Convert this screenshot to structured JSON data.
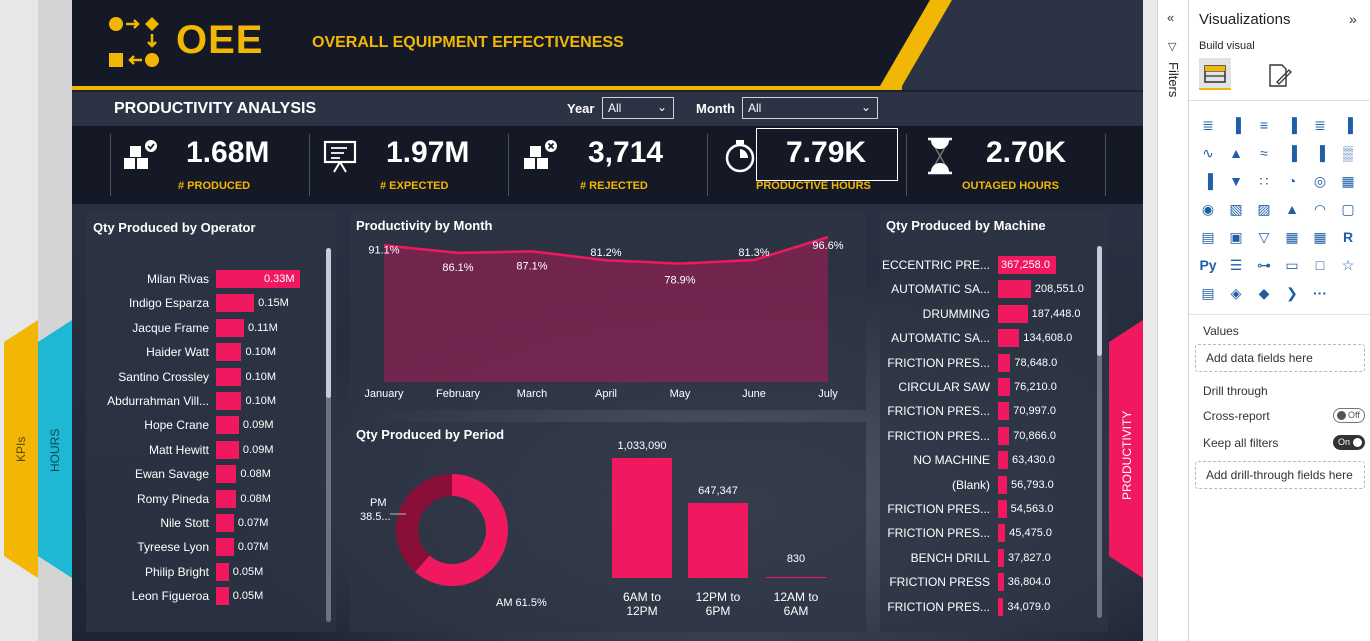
{
  "left_tabs": {
    "kpis": "KPIs",
    "hours": "HOURS"
  },
  "header": {
    "logo_text": "OEE",
    "subtitle": "OVERALL EQUIPMENT  EFFECTIVENESS"
  },
  "section_title": "PRODUCTIVITY ANALYSIS",
  "slicers": {
    "year": {
      "label": "Year",
      "value": "All"
    },
    "month": {
      "label": "Month",
      "value": "All"
    }
  },
  "kpis": [
    {
      "value": "1.68M",
      "caption": "# PRODUCED",
      "icon": "boxes-check-icon"
    },
    {
      "value": "1.97M",
      "caption": "# EXPECTED",
      "icon": "presentation-board-icon"
    },
    {
      "value": "3,714",
      "caption": "# REJECTED",
      "icon": "boxes-x-icon"
    },
    {
      "value": "7.79K",
      "caption": "PRODUCTIVE HOURS",
      "icon": "stopwatch-icon"
    },
    {
      "value": "2.70K",
      "caption": "OUTAGED HOURS",
      "icon": "hourglass-icon"
    }
  ],
  "operator_chart": {
    "title": "Qty Produced by Operator",
    "rows": [
      {
        "label": "Milan Rivas",
        "value": 0.33,
        "text": "0.33M"
      },
      {
        "label": "Indigo Esparza",
        "value": 0.15,
        "text": "0.15M"
      },
      {
        "label": "Jacque Frame",
        "value": 0.11,
        "text": "0.11M"
      },
      {
        "label": "Haider Watt",
        "value": 0.1,
        "text": "0.10M"
      },
      {
        "label": "Santino Crossley",
        "value": 0.1,
        "text": "0.10M"
      },
      {
        "label": "Abdurrahman Vill...",
        "value": 0.1,
        "text": "0.10M"
      },
      {
        "label": "Hope Crane",
        "value": 0.09,
        "text": "0.09M"
      },
      {
        "label": "Matt Hewitt",
        "value": 0.09,
        "text": "0.09M"
      },
      {
        "label": "Ewan Savage",
        "value": 0.08,
        "text": "0.08M"
      },
      {
        "label": "Romy Pineda",
        "value": 0.08,
        "text": "0.08M"
      },
      {
        "label": "Nile Stott",
        "value": 0.07,
        "text": "0.07M"
      },
      {
        "label": "Tyreese Lyon",
        "value": 0.07,
        "text": "0.07M"
      },
      {
        "label": "Philip Bright",
        "value": 0.05,
        "text": "0.05M"
      },
      {
        "label": "Leon Figueroa",
        "value": 0.05,
        "text": "0.05M"
      }
    ]
  },
  "month_chart": {
    "title": "Productivity by Month",
    "categories": [
      "January",
      "February",
      "March",
      "April",
      "May",
      "June",
      "July"
    ],
    "values": [
      91.1,
      86.1,
      87.1,
      81.2,
      78.9,
      81.3,
      96.6
    ],
    "labels": [
      "91.1%",
      "86.1%",
      "87.1%",
      "81.2%",
      "78.9%",
      "81.3%",
      "96.6%"
    ],
    "ylim": [
      0,
      100
    ]
  },
  "period_chart": {
    "title": "Qty Produced by Period",
    "donut": {
      "pm_label": "PM",
      "pm_value": "38.5...",
      "am_label": "AM 61.5%",
      "am_pct": 61.5,
      "pm_pct": 38.5
    },
    "bars": [
      {
        "label_l1": "6AM to",
        "label_l2": "12PM",
        "value": 1033090,
        "text": "1,033,090"
      },
      {
        "label_l1": "12PM to",
        "label_l2": "6PM",
        "value": 647347,
        "text": "647,347"
      },
      {
        "label_l1": "12AM to",
        "label_l2": "6AM",
        "value": 830,
        "text": "830"
      }
    ]
  },
  "machine_chart": {
    "title": "Qty Produced by Machine",
    "rows": [
      {
        "label": "ECCENTRIC PRE...",
        "value": 367258,
        "text": "367,258.0"
      },
      {
        "label": "AUTOMATIC SA...",
        "value": 208551,
        "text": "208,551.0"
      },
      {
        "label": "DRUMMING",
        "value": 187448,
        "text": "187,448.0"
      },
      {
        "label": "AUTOMATIC SA...",
        "value": 134608,
        "text": "134,608.0"
      },
      {
        "label": "FRICTION PRES...",
        "value": 78648,
        "text": "78,648.0"
      },
      {
        "label": "CIRCULAR SAW",
        "value": 76210,
        "text": "76,210.0"
      },
      {
        "label": "FRICTION PRES...",
        "value": 70997,
        "text": "70,997.0"
      },
      {
        "label": "FRICTION PRES...",
        "value": 70866,
        "text": "70,866.0"
      },
      {
        "label": "NO MACHINE",
        "value": 63430,
        "text": "63,430.0"
      },
      {
        "label": "(Blank)",
        "value": 56793,
        "text": "56,793.0"
      },
      {
        "label": "FRICTION PRES...",
        "value": 54563,
        "text": "54,563.0"
      },
      {
        "label": "FRICTION PRES...",
        "value": 45475,
        "text": "45,475.0"
      },
      {
        "label": "BENCH DRILL",
        "value": 37827,
        "text": "37,827.0"
      },
      {
        "label": "FRICTION PRESS",
        "value": 36804,
        "text": "36,804.0"
      },
      {
        "label": "FRICTION PRES...",
        "value": 34079,
        "text": "34,079.0"
      }
    ]
  },
  "right_tab": "PRODUCTIVITY",
  "filters_pane": {
    "label": "Filters"
  },
  "viz_pane": {
    "title": "Visualizations",
    "build_visual": "Build visual",
    "values": "Values",
    "add_data_fields": "Add data fields here",
    "drill_through": "Drill through",
    "cross_report": "Cross-report",
    "cross_report_state": "Off",
    "keep_all_filters": "Keep all filters",
    "keep_all_filters_state": "On",
    "add_drill_fields": "Add drill-through fields here",
    "more": "···",
    "r_icon": "R",
    "py_icon": "Py"
  },
  "colors": {
    "accent_pink": "#f0185f",
    "accent_yellow": "#f2b705",
    "accent_cyan": "#1fb8d4"
  }
}
